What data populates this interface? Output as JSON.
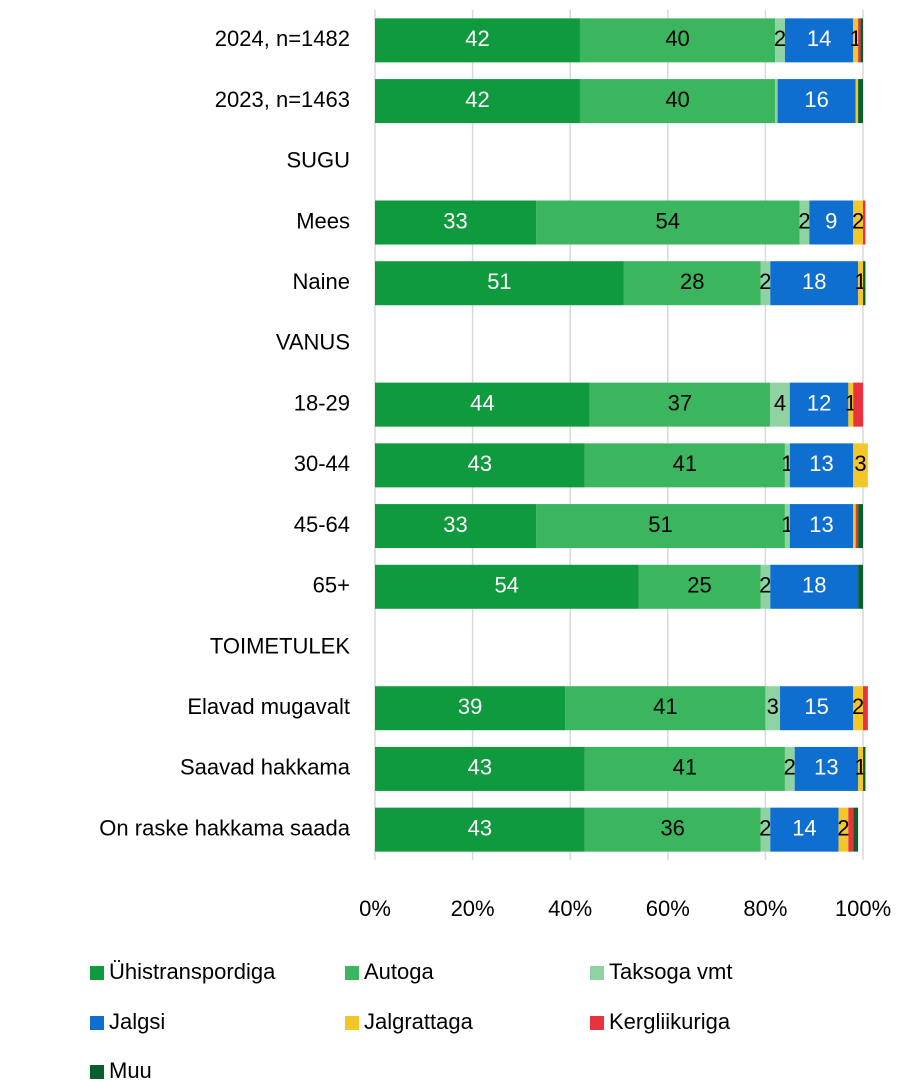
{
  "chart_data": {
    "type": "stacked_barh",
    "categories": [
      "2024, n=1482",
      "2023, n=1463",
      "SUGU",
      "Mees",
      "Naine",
      "VANUS",
      "18-29",
      "30-44",
      "45-64",
      "65+",
      "TOIMETULEK",
      "Elavad mugavalt",
      "Saavad hakkama",
      "On raske hakkama saada"
    ],
    "xlim": [
      0,
      100
    ],
    "xticks": [
      {
        "value": 0,
        "label": "0%"
      },
      {
        "value": 20,
        "label": "20%"
      },
      {
        "value": 40,
        "label": "40%"
      },
      {
        "value": 60,
        "label": "60%"
      },
      {
        "value": 80,
        "label": "80%"
      },
      {
        "value": 100,
        "label": "100%"
      }
    ],
    "grid": true,
    "legend": "bottom",
    "series": [
      {
        "name": "Ühistranspordiga",
        "color": "#0f9a3e",
        "label_color": "#ffffff",
        "values": [
          42,
          42,
          null,
          33,
          51,
          null,
          44,
          43,
          33,
          54,
          null,
          39,
          43,
          43
        ],
        "value_labels": [
          "42",
          "42",
          null,
          "33",
          "51",
          null,
          "44",
          "43",
          "33",
          "54",
          null,
          "39",
          "43",
          "43"
        ]
      },
      {
        "name": "Autoga",
        "color": "#3cb55f",
        "label_color": "#000000",
        "values": [
          40,
          40,
          null,
          54,
          28,
          null,
          37,
          41,
          51,
          25,
          null,
          41,
          41,
          36
        ],
        "value_labels": [
          "40",
          "40",
          null,
          "54",
          "28",
          null,
          "37",
          "41",
          "51",
          "25",
          null,
          "41",
          "41",
          "36"
        ]
      },
      {
        "name": "Taksoga vmt",
        "color": "#8fd3a2",
        "label_color": "#000000",
        "values": [
          2,
          0.5,
          null,
          2,
          2,
          null,
          4,
          1,
          1,
          2,
          null,
          3,
          2,
          2
        ],
        "value_labels": [
          "2",
          null,
          null,
          "2",
          "2",
          null,
          "4",
          "1",
          "1",
          "2",
          null,
          "3",
          "2",
          "2"
        ]
      },
      {
        "name": "Jalgsi",
        "color": "#0f6fd1",
        "label_color": "#ffffff",
        "values": [
          14,
          16,
          null,
          9,
          18,
          null,
          12,
          13,
          13,
          18,
          null,
          15,
          13,
          14
        ],
        "value_labels": [
          "14",
          "16",
          null,
          "9",
          "18",
          null,
          "12",
          "13",
          "13",
          "18",
          null,
          "15",
          "13",
          "14"
        ]
      },
      {
        "name": "Jalgrattaga",
        "color": "#f4c62a",
        "label_color": "#000000",
        "values": [
          1,
          0.5,
          null,
          2,
          1,
          null,
          1,
          3,
          0.5,
          0,
          null,
          2,
          1,
          2
        ],
        "value_labels": [
          "1",
          null,
          null,
          "2",
          "1",
          null,
          "1",
          "3",
          null,
          null,
          null,
          "2",
          "1",
          "2"
        ]
      },
      {
        "name": "Kergliikuriga",
        "color": "#e8333e",
        "label_color": "#000000",
        "values": [
          0.5,
          0,
          null,
          0.5,
          0,
          null,
          2,
          0,
          0.5,
          0,
          null,
          1,
          0,
          1
        ],
        "value_labels": [
          null,
          null,
          null,
          null,
          null,
          null,
          null,
          null,
          null,
          null,
          null,
          null,
          null,
          null
        ]
      },
      {
        "name": "Muu",
        "color": "#0b5e2b",
        "label_color": "#ffffff",
        "values": [
          0.5,
          1,
          null,
          0,
          0.5,
          null,
          0,
          0,
          1,
          1,
          null,
          0,
          0.5,
          1
        ],
        "value_labels": [
          null,
          null,
          null,
          null,
          null,
          null,
          null,
          null,
          null,
          null,
          null,
          null,
          null,
          null
        ]
      }
    ]
  }
}
